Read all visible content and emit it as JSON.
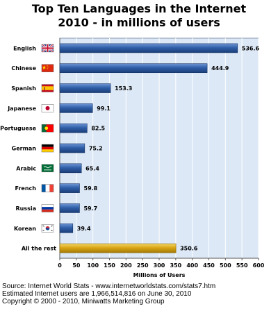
{
  "chart_data": {
    "type": "bar",
    "orientation": "horizontal",
    "title": "Top Ten Languages in the Internet",
    "subtitle": "2010 - in millions of users",
    "categories": [
      "English",
      "Chinese",
      "Spanish",
      "Japanese",
      "Portuguese",
      "German",
      "Arabic",
      "French",
      "Russia",
      "Korean",
      "All the rest"
    ],
    "values": [
      536.6,
      444.9,
      153.3,
      99.1,
      82.5,
      75.2,
      65.4,
      59.8,
      59.7,
      39.4,
      350.6
    ],
    "value_labels": [
      "536.6",
      "444.9",
      "153.3",
      "99.1",
      "82.5",
      "75.2",
      "65.4",
      "59.8",
      "59.7",
      "39.4",
      "350.6"
    ],
    "flag_icons": [
      "uk-flag-icon",
      "china-flag-icon",
      "spain-flag-icon",
      "japan-flag-icon",
      "portugal-flag-icon",
      "germany-flag-icon",
      "saudi-arabia-flag-icon",
      "france-flag-icon",
      "russia-flag-icon",
      "south-korea-flag-icon",
      ""
    ],
    "xlabel": "Millions of Users",
    "ylabel": "",
    "xlim": [
      0,
      600
    ],
    "xticks": [
      0,
      50,
      100,
      150,
      200,
      250,
      300,
      350,
      400,
      450,
      500,
      550,
      600
    ],
    "grid": true,
    "colors": {
      "bar": "#2f5fa8",
      "highlight_bar": "#d9a514",
      "plot_bg": "#dce8f6",
      "grid": "#ffffff"
    }
  },
  "footer": {
    "source": "Source: Internet World Stats - www.internetworldstats.com/stats7.htm",
    "estimate": "Estimated Internet users are 1,966,514,816 on June 30, 2010",
    "copyright": "Copyright © 2000 - 2010, Miniwatts Marketing Group"
  }
}
